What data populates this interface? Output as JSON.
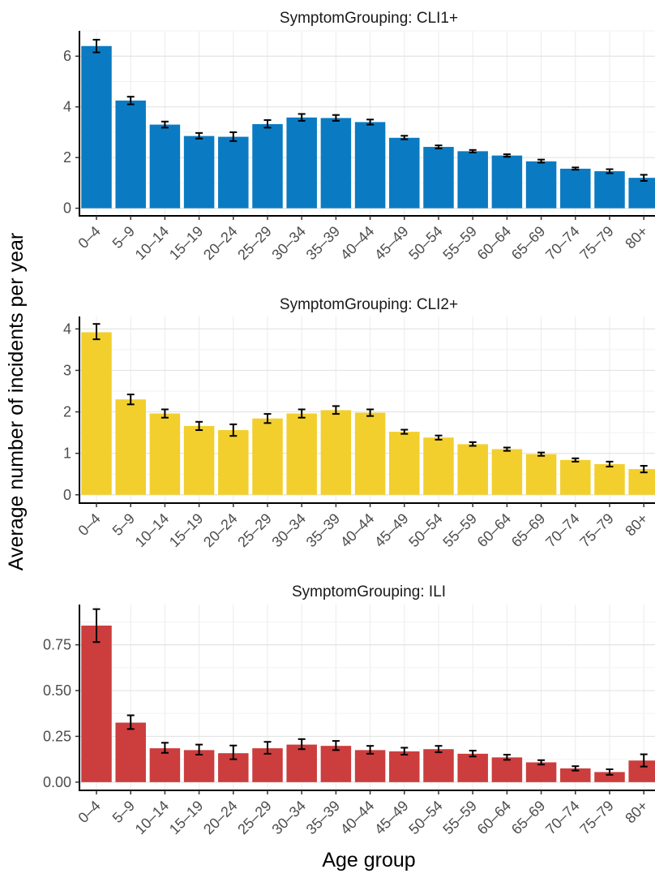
{
  "chart_data": {
    "type": "bar",
    "xlabel": "Age group",
    "ylabel": "Average number of incidents per year",
    "categories": [
      "0–4",
      "5–9",
      "10–14",
      "15–19",
      "20–24",
      "25–29",
      "30–34",
      "35–39",
      "40–44",
      "45–49",
      "50–54",
      "55–59",
      "60–64",
      "65–69",
      "70–74",
      "75–79",
      "80+"
    ],
    "facet_label": "SymptomGrouping",
    "panels": [
      {
        "title": "SymptomGrouping: CLI1+",
        "color": "#0a7bc2",
        "ylim": [
          -0.3,
          7.0
        ],
        "yticks": [
          0,
          2,
          4,
          6
        ],
        "ytick_labels": [
          "0",
          "2",
          "4",
          "6"
        ],
        "values": [
          6.4,
          4.25,
          3.3,
          2.85,
          2.82,
          3.32,
          3.58,
          3.56,
          3.4,
          2.78,
          2.42,
          2.25,
          2.08,
          1.85,
          1.56,
          1.46,
          1.2
        ],
        "err_low": [
          6.15,
          4.1,
          3.18,
          2.75,
          2.65,
          3.18,
          3.45,
          3.45,
          3.3,
          2.72,
          2.36,
          2.2,
          2.03,
          1.8,
          1.52,
          1.38,
          1.08
        ],
        "err_high": [
          6.65,
          4.4,
          3.42,
          2.97,
          3.0,
          3.48,
          3.72,
          3.68,
          3.5,
          2.86,
          2.48,
          2.3,
          2.13,
          1.92,
          1.61,
          1.54,
          1.32
        ]
      },
      {
        "title": "SymptomGrouping: CLI2+",
        "color": "#f2cf2c",
        "ylim": [
          -0.2,
          4.3
        ],
        "yticks": [
          0,
          1,
          2,
          3,
          4
        ],
        "ytick_labels": [
          "0",
          "1",
          "2",
          "3",
          "4"
        ],
        "values": [
          3.92,
          2.3,
          1.96,
          1.66,
          1.56,
          1.84,
          1.96,
          2.04,
          1.98,
          1.52,
          1.38,
          1.22,
          1.1,
          0.98,
          0.84,
          0.74,
          0.62
        ],
        "err_low": [
          3.75,
          2.18,
          1.86,
          1.56,
          1.42,
          1.73,
          1.86,
          1.95,
          1.9,
          1.47,
          1.33,
          1.18,
          1.06,
          0.94,
          0.8,
          0.68,
          0.54
        ],
        "err_high": [
          4.12,
          2.42,
          2.06,
          1.76,
          1.7,
          1.95,
          2.06,
          2.14,
          2.06,
          1.57,
          1.43,
          1.27,
          1.14,
          1.02,
          0.88,
          0.8,
          0.7
        ]
      },
      {
        "title": "SymptomGrouping: ILI",
        "color": "#cc3d3d",
        "ylim": [
          -0.045,
          0.97
        ],
        "yticks": [
          0.0,
          0.25,
          0.5,
          0.75
        ],
        "ytick_labels": [
          "0.00",
          "0.25",
          "0.50",
          "0.75"
        ],
        "values": [
          0.855,
          0.325,
          0.185,
          0.175,
          0.158,
          0.185,
          0.205,
          0.198,
          0.175,
          0.168,
          0.18,
          0.155,
          0.135,
          0.108,
          0.075,
          0.055,
          0.118
        ],
        "err_low": [
          0.765,
          0.29,
          0.16,
          0.15,
          0.125,
          0.155,
          0.18,
          0.175,
          0.155,
          0.15,
          0.163,
          0.14,
          0.122,
          0.096,
          0.063,
          0.04,
          0.085
        ],
        "err_high": [
          0.945,
          0.365,
          0.215,
          0.205,
          0.2,
          0.22,
          0.235,
          0.225,
          0.198,
          0.188,
          0.198,
          0.172,
          0.15,
          0.12,
          0.087,
          0.07,
          0.152
        ]
      }
    ],
    "grid": true,
    "legend": "none"
  }
}
